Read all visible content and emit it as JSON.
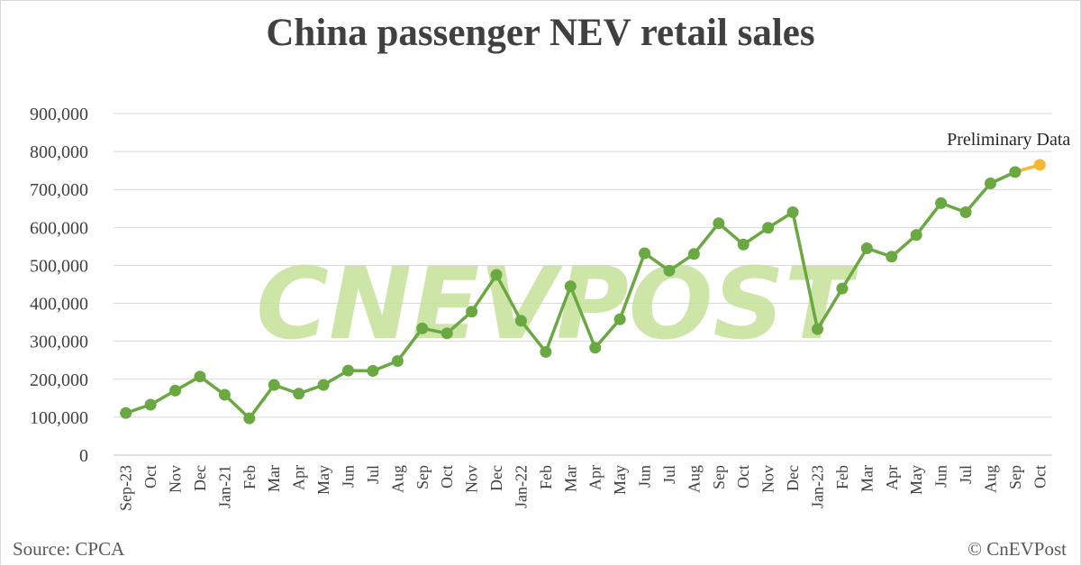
{
  "chart_data": {
    "type": "line",
    "title": "China passenger NEV retail sales",
    "categories": [
      "Sep-23",
      "Oct",
      "Nov",
      "Dec",
      "Jan-21",
      "Feb",
      "Mar",
      "Apr",
      "May",
      "Jun",
      "Jul",
      "Aug",
      "Sep",
      "Oct",
      "Nov",
      "Dec",
      "Jan-22",
      "Feb",
      "Mar",
      "Apr",
      "May",
      "Jun",
      "Jul",
      "Aug",
      "Sep",
      "Oct",
      "Nov",
      "Dec",
      "Jan-23",
      "Feb",
      "Mar",
      "Apr",
      "May",
      "Jun",
      "Jul",
      "Aug",
      "Sep",
      "Oct"
    ],
    "series": [
      {
        "values": [
          111000,
          133000,
          170000,
          207000,
          159000,
          97000,
          185000,
          162000,
          185000,
          223000,
          222000,
          248000,
          334000,
          321000,
          378000,
          475000,
          354000,
          272000,
          445000,
          283000,
          358000,
          532000,
          486000,
          530000,
          611000,
          555000,
          599000,
          640000,
          332000,
          439000,
          545000,
          523000,
          580000,
          664000,
          640000,
          716000,
          746000,
          765000
        ],
        "color": "#6aa842",
        "preliminary_last_point_color": "#f5b82e"
      }
    ],
    "ylim": [
      0,
      900000
    ],
    "yticks": [
      "0",
      "100,000",
      "200,000",
      "300,000",
      "400,000",
      "500,000",
      "600,000",
      "700,000",
      "800,000",
      "900,000"
    ],
    "grid": true,
    "annotation": "Preliminary Data",
    "xlabel": "",
    "ylabel": ""
  },
  "footer": {
    "source": "Source: CPCA",
    "copyright": "© CnEVPost"
  },
  "watermark": "CNEVPOST"
}
